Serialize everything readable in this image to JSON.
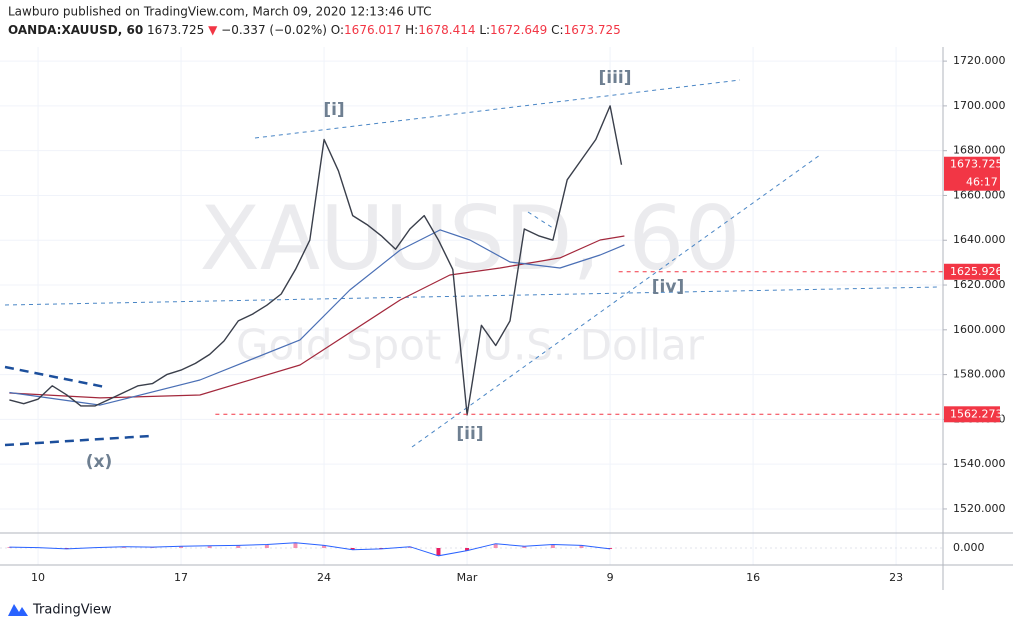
{
  "header": {
    "publisher": "Lawburo published on TradingView.com, March 09, 2020 12:13:46 UTC",
    "symbol": "OANDA:XAUUSD, 60",
    "last": "1673.725",
    "arrow": "▼",
    "change": "−0.337 (−0.02%)",
    "ohlc": [
      {
        "label": "O:",
        "value": "1676.017"
      },
      {
        "label": "H:",
        "value": "1678.414"
      },
      {
        "label": "L:",
        "value": "1672.649"
      },
      {
        "label": "C:",
        "value": "1673.725"
      }
    ]
  },
  "watermark": {
    "symbol": "XAUUSD, 60",
    "description": "Gold Spot / U.S. Dollar"
  },
  "footer": {
    "brand": "TradingView"
  },
  "chart_data": {
    "type": "line",
    "xlim": [
      -1.33,
      31.64
    ],
    "xticks": [
      {
        "value": 0,
        "label": "10"
      },
      {
        "value": 5,
        "label": "17"
      },
      {
        "value": 10,
        "label": "24"
      },
      {
        "value": 15,
        "label": "Mar"
      },
      {
        "value": 20,
        "label": "9"
      },
      {
        "value": 25,
        "label": "16"
      },
      {
        "value": 30,
        "label": "23"
      }
    ],
    "ylim": [
      1510.6,
      1726.3
    ],
    "yticks": [
      {
        "value": 1520,
        "label": "1520.000"
      },
      {
        "value": 1540,
        "label": "1540.000"
      },
      {
        "value": 1560,
        "label": "1560.000"
      },
      {
        "value": 1580,
        "label": "1580.000"
      },
      {
        "value": 1600,
        "label": "1600.000"
      },
      {
        "value": 1620,
        "label": "1620.000"
      },
      {
        "value": 1640,
        "label": "1640.000"
      },
      {
        "value": 1660,
        "label": "1660.000"
      },
      {
        "value": 1680,
        "label": "1680.000"
      },
      {
        "value": 1700,
        "label": "1700.000"
      },
      {
        "value": 1720,
        "label": "1720.000"
      }
    ],
    "grid": true,
    "series": [
      {
        "color": "#3a3f4b",
        "width": 1.4,
        "x": [
          -1,
          -0.5,
          0,
          0.5,
          1,
          1.5,
          2,
          2.5,
          3,
          3.5,
          4,
          4.5,
          5,
          5.5,
          6,
          6.5,
          7,
          7.5,
          8,
          8.5,
          9,
          9.5,
          10,
          10.5,
          11,
          11.5,
          12,
          12.5,
          13,
          13.5,
          14,
          14.5,
          15,
          15.5,
          16,
          16.5,
          17,
          17.5,
          18,
          18.5,
          19,
          19.5,
          20,
          20.4
        ],
        "values": [
          1568.7,
          1567,
          1569,
          1575,
          1571,
          1566,
          1566,
          1569,
          1572,
          1575,
          1576,
          1580,
          1582,
          1585,
          1589,
          1595,
          1604,
          1607,
          1611,
          1616,
          1627,
          1640,
          1685,
          1671,
          1651,
          1647,
          1642,
          1636,
          1645,
          1651,
          1640,
          1627,
          1562,
          1602,
          1593,
          1604,
          1645,
          1642,
          1640,
          1667,
          1676,
          1685,
          1700,
          1673.725
        ]
      },
      {
        "color": "#4a6fb5",
        "width": 1.2,
        "x": [
          -1,
          2.17,
          5.66,
          9.16,
          10.9,
          12.66,
          14.06,
          15.1,
          16.5,
          18.25,
          19.65,
          20.5
        ],
        "values": [
          1572,
          1566.4,
          1577.6,
          1595.5,
          1617.8,
          1635.6,
          1644.6,
          1640.1,
          1630.3,
          1627.6,
          1633.4,
          1637.9
        ]
      },
      {
        "color": "#a3283c",
        "width": 1.2,
        "x": [
          -1,
          2.17,
          5.66,
          9.16,
          12.66,
          14.4,
          16.15,
          18.25,
          19.65,
          20.5
        ],
        "values": [
          1571.8,
          1569.6,
          1570.9,
          1584.3,
          1613.3,
          1624.5,
          1627.6,
          1632.1,
          1640.1,
          1641.9
        ]
      }
    ],
    "levels": [
      {
        "value": 1625.926,
        "from": 20.3,
        "color": "#f23645"
      },
      {
        "value": 1562.273,
        "from": 6.2,
        "color": "#f23645"
      }
    ],
    "last_price": 1673.725,
    "countdown": "46:17",
    "annotations": [
      "[i]",
      "[ii]",
      "[iii]",
      "[iv]",
      "(x)"
    ],
    "oscillator": {
      "ylim": [
        -3,
        3
      ],
      "yticks": [
        {
          "value": 0,
          "label": "0.000"
        }
      ],
      "x": [
        -1,
        0,
        1,
        2,
        3,
        4,
        5,
        6,
        7,
        8,
        9,
        10,
        11,
        12,
        13,
        14,
        15,
        16,
        17,
        18,
        19,
        20
      ],
      "values": [
        0.2,
        0.1,
        -0.2,
        0.1,
        0.3,
        0.2,
        0.4,
        0.5,
        0.6,
        0.8,
        1.2,
        0.6,
        -0.4,
        -0.2,
        0.3,
        -1.8,
        -0.6,
        1.0,
        0.4,
        0.8,
        0.6,
        -0.2
      ]
    }
  }
}
